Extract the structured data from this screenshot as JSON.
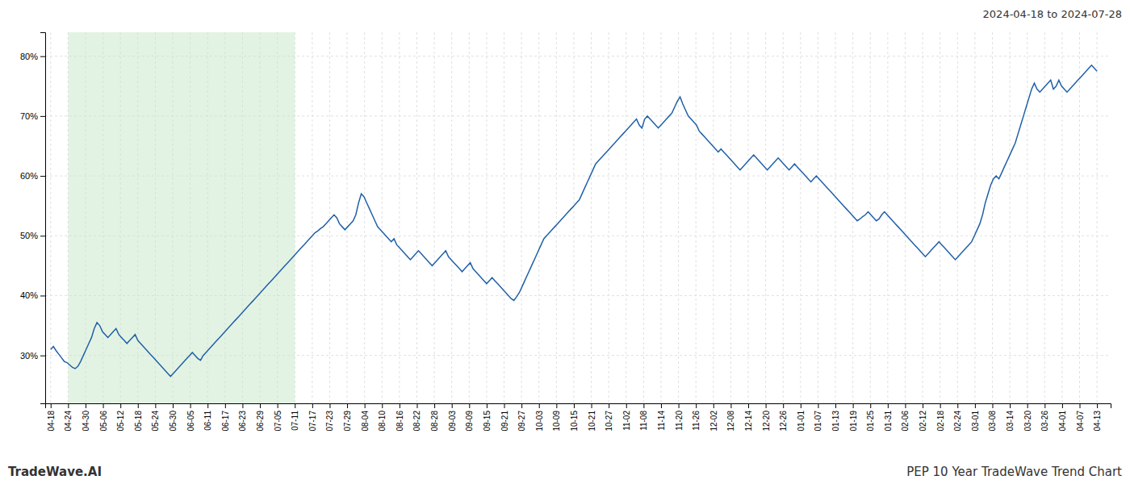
{
  "chart_data": {
    "type": "line",
    "title": "2024-04-18 to 2024-07-28",
    "annotations": [
      "TradeWave.AI",
      "PEP 10 Year TradeWave Trend Chart"
    ],
    "color": "#2060a8",
    "grid": true,
    "spans": [
      {
        "x": [
          6.4,
          89.6
        ],
        "color": "#c8e8c8"
      }
    ],
    "xlim": [
      -2,
      389
    ],
    "xticks": [
      {
        "value": 0,
        "label": "04-18"
      },
      {
        "value": 6.4,
        "label": "04-24"
      },
      {
        "value": 12.8,
        "label": "04-30"
      },
      {
        "value": 19.2,
        "label": "05-06"
      },
      {
        "value": 25.6,
        "label": "05-12"
      },
      {
        "value": 32,
        "label": "05-18"
      },
      {
        "value": 38.4,
        "label": "05-24"
      },
      {
        "value": 44.8,
        "label": "05-30"
      },
      {
        "value": 51.2,
        "label": "06-05"
      },
      {
        "value": 57.6,
        "label": "06-11"
      },
      {
        "value": 64,
        "label": "06-17"
      },
      {
        "value": 70.4,
        "label": "06-23"
      },
      {
        "value": 76.8,
        "label": "06-29"
      },
      {
        "value": 83.2,
        "label": "07-05"
      },
      {
        "value": 89.6,
        "label": "07-11"
      },
      {
        "value": 96,
        "label": "07-17"
      },
      {
        "value": 102.4,
        "label": "07-23"
      },
      {
        "value": 108.8,
        "label": "07-29"
      },
      {
        "value": 115.2,
        "label": "08-04"
      },
      {
        "value": 121.6,
        "label": "08-10"
      },
      {
        "value": 128,
        "label": "08-16"
      },
      {
        "value": 134.4,
        "label": "08-22"
      },
      {
        "value": 140.8,
        "label": "08-28"
      },
      {
        "value": 147.2,
        "label": "09-03"
      },
      {
        "value": 153.6,
        "label": "09-09"
      },
      {
        "value": 160,
        "label": "09-15"
      },
      {
        "value": 166.4,
        "label": "09-21"
      },
      {
        "value": 172.8,
        "label": "09-27"
      },
      {
        "value": 179.2,
        "label": "10-03"
      },
      {
        "value": 185.6,
        "label": "10-09"
      },
      {
        "value": 192,
        "label": "10-15"
      },
      {
        "value": 198.4,
        "label": "10-21"
      },
      {
        "value": 204.8,
        "label": "10-27"
      },
      {
        "value": 211.2,
        "label": "11-02"
      },
      {
        "value": 217.6,
        "label": "11-08"
      },
      {
        "value": 224,
        "label": "11-14"
      },
      {
        "value": 230.4,
        "label": "11-20"
      },
      {
        "value": 236.8,
        "label": "11-26"
      },
      {
        "value": 243.2,
        "label": "12-02"
      },
      {
        "value": 249.6,
        "label": "12-08"
      },
      {
        "value": 256,
        "label": "12-14"
      },
      {
        "value": 262.4,
        "label": "12-20"
      },
      {
        "value": 268.8,
        "label": "12-26"
      },
      {
        "value": 275.2,
        "label": "01-01"
      },
      {
        "value": 281.6,
        "label": "01-07"
      },
      {
        "value": 288,
        "label": "01-13"
      },
      {
        "value": 294.4,
        "label": "01-19"
      },
      {
        "value": 300.8,
        "label": "01-25"
      },
      {
        "value": 307.2,
        "label": "01-31"
      },
      {
        "value": 313.6,
        "label": "02-06"
      },
      {
        "value": 320,
        "label": "02-12"
      },
      {
        "value": 326.4,
        "label": "02-18"
      },
      {
        "value": 332.8,
        "label": "02-24"
      },
      {
        "value": 339.2,
        "label": "03-01"
      },
      {
        "value": 345.6,
        "label": "03-08"
      },
      {
        "value": 352,
        "label": "03-14"
      },
      {
        "value": 358.4,
        "label": "03-20"
      },
      {
        "value": 364.8,
        "label": "03-26"
      },
      {
        "value": 371.2,
        "label": "04-01"
      },
      {
        "value": 377.6,
        "label": "04-07"
      },
      {
        "value": 384,
        "label": "04-13"
      }
    ],
    "ylim": [
      22,
      84
    ],
    "yticks": [
      {
        "value": 30,
        "label": "30%"
      },
      {
        "value": 40,
        "label": "40%"
      },
      {
        "value": 50,
        "label": "50%"
      },
      {
        "value": 60,
        "label": "60%"
      },
      {
        "value": 70,
        "label": "70%"
      },
      {
        "value": 80,
        "label": "80%"
      }
    ],
    "values": [
      31.0,
      31.5,
      30.8,
      30.2,
      29.6,
      29.0,
      28.8,
      28.4,
      28.0,
      27.8,
      28.2,
      29.0,
      30.0,
      31.0,
      32.0,
      33.0,
      34.5,
      35.5,
      35.0,
      34.0,
      33.5,
      33.0,
      33.5,
      34.0,
      34.5,
      33.5,
      33.0,
      32.5,
      32.0,
      32.5,
      33.0,
      33.5,
      32.5,
      32.0,
      31.5,
      31.0,
      30.5,
      30.0,
      29.5,
      29.0,
      28.5,
      28.0,
      27.5,
      27.0,
      26.5,
      27.0,
      27.5,
      28.0,
      28.5,
      29.0,
      29.5,
      30.0,
      30.5,
      30.0,
      29.5,
      29.2,
      30.0,
      30.5,
      31.0,
      31.5,
      32.0,
      32.5,
      33.0,
      33.5,
      34.0,
      34.5,
      35.0,
      35.5,
      36.0,
      36.5,
      37.0,
      37.5,
      38.0,
      38.5,
      39.0,
      39.5,
      40.0,
      40.5,
      41.0,
      41.5,
      42.0,
      42.5,
      43.0,
      43.5,
      44.0,
      44.5,
      45.0,
      45.5,
      46.0,
      46.5,
      47.0,
      47.5,
      48.0,
      48.5,
      49.0,
      49.5,
      50.0,
      50.5,
      50.8,
      51.2,
      51.5,
      52.0,
      52.5,
      53.0,
      53.5,
      53.0,
      52.0,
      51.5,
      51.0,
      51.5,
      52.0,
      52.5,
      53.5,
      55.5,
      57.0,
      56.5,
      55.5,
      54.5,
      53.5,
      52.5,
      51.5,
      51.0,
      50.5,
      50.0,
      49.5,
      49.0,
      49.5,
      48.5,
      48.0,
      47.5,
      47.0,
      46.5,
      46.0,
      46.5,
      47.0,
      47.5,
      47.0,
      46.5,
      46.0,
      45.5,
      45.0,
      45.5,
      46.0,
      46.5,
      47.0,
      47.5,
      46.5,
      46.0,
      45.5,
      45.0,
      44.5,
      44.0,
      44.5,
      45.0,
      45.5,
      44.5,
      44.0,
      43.5,
      43.0,
      42.5,
      42.0,
      42.5,
      43.0,
      42.5,
      42.0,
      41.5,
      41.0,
      40.5,
      40.0,
      39.5,
      39.2,
      39.8,
      40.5,
      41.5,
      42.5,
      43.5,
      44.5,
      45.5,
      46.5,
      47.5,
      48.5,
      49.5,
      50.0,
      50.5,
      51.0,
      51.5,
      52.0,
      52.5,
      53.0,
      53.5,
      54.0,
      54.5,
      55.0,
      55.5,
      56.0,
      57.0,
      58.0,
      59.0,
      60.0,
      61.0,
      62.0,
      62.5,
      63.0,
      63.5,
      64.0,
      64.5,
      65.0,
      65.5,
      66.0,
      66.5,
      67.0,
      67.5,
      68.0,
      68.5,
      69.0,
      69.5,
      68.5,
      68.0,
      69.5,
      70.0,
      69.5,
      69.0,
      68.5,
      68.0,
      68.5,
      69.0,
      69.5,
      70.0,
      70.5,
      71.5,
      72.5,
      73.2,
      72.0,
      71.0,
      70.0,
      69.5,
      69.0,
      68.5,
      67.5,
      67.0,
      66.5,
      66.0,
      65.5,
      65.0,
      64.5,
      64.0,
      64.5,
      64.0,
      63.5,
      63.0,
      62.5,
      62.0,
      61.5,
      61.0,
      61.5,
      62.0,
      62.5,
      63.0,
      63.5,
      63.0,
      62.5,
      62.0,
      61.5,
      61.0,
      61.5,
      62.0,
      62.5,
      63.0,
      62.5,
      62.0,
      61.5,
      61.0,
      61.5,
      62.0,
      61.5,
      61.0,
      60.5,
      60.0,
      59.5,
      59.0,
      59.5,
      60.0,
      59.5,
      59.0,
      58.5,
      58.0,
      57.5,
      57.0,
      56.5,
      56.0,
      55.5,
      55.0,
      54.5,
      54.0,
      53.5,
      53.0,
      52.5,
      52.8,
      53.2,
      53.5,
      54.0,
      53.5,
      53.0,
      52.5,
      52.8,
      53.5,
      54.0,
      53.5,
      53.0,
      52.5,
      52.0,
      51.5,
      51.0,
      50.5,
      50.0,
      49.5,
      49.0,
      48.5,
      48.0,
      47.5,
      47.0,
      46.5,
      47.0,
      47.5,
      48.0,
      48.5,
      49.0,
      48.5,
      48.0,
      47.5,
      47.0,
      46.5,
      46.0,
      46.5,
      47.0,
      47.5,
      48.0,
      48.5,
      49.0,
      50.0,
      51.0,
      52.0,
      53.5,
      55.5,
      57.0,
      58.5,
      59.5,
      60.0,
      59.5,
      60.5,
      61.5,
      62.5,
      63.5,
      64.5,
      65.5,
      67.0,
      68.5,
      70.0,
      71.5,
      73.0,
      74.5,
      75.5,
      74.5,
      74.0,
      74.5,
      75.0,
      75.5,
      76.0,
      74.5,
      75.0,
      76.0,
      75.0,
      74.5,
      74.0,
      74.5,
      75.0,
      75.5,
      76.0,
      76.5,
      77.0,
      77.5,
      78.0,
      78.5,
      78.0,
      77.5
    ]
  }
}
